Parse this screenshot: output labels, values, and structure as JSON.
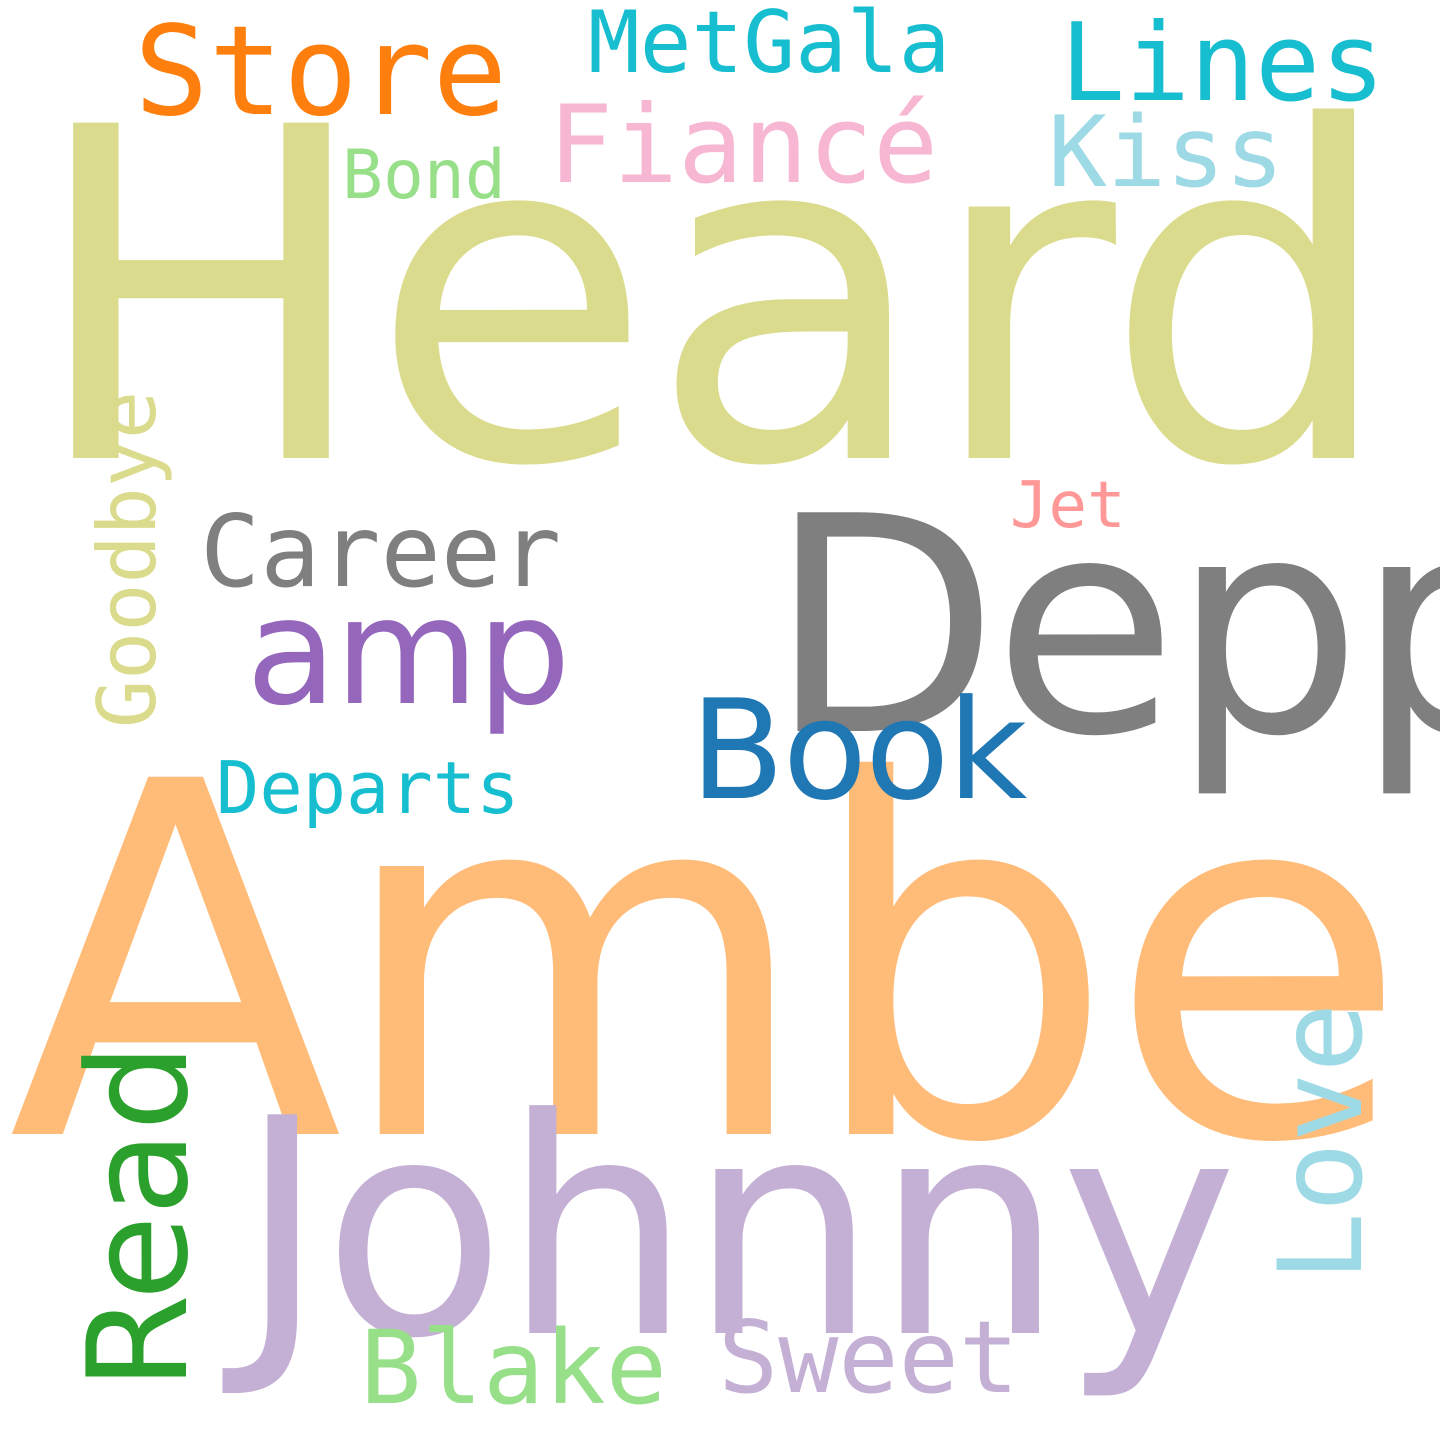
{
  "words": {
    "heard": {
      "text": "Heard",
      "color": "#dbdb8d"
    },
    "amber": {
      "text": "Amber",
      "color": "#ffbb78"
    },
    "johnny": {
      "text": "Johnny",
      "color": "#c5b0d5"
    },
    "depp": {
      "text": "Depp",
      "color": "#7f7f7f"
    },
    "store": {
      "text": "Store",
      "color": "#ff7f0e"
    },
    "metgala": {
      "text": "MetGala",
      "color": "#17becf"
    },
    "lines": {
      "text": "Lines",
      "color": "#17becf"
    },
    "fiance": {
      "text": "Fiancé",
      "color": "#f7b6d2"
    },
    "kiss": {
      "text": "Kiss",
      "color": "#9edae5"
    },
    "bond": {
      "text": "Bond",
      "color": "#98df8a"
    },
    "career": {
      "text": "Career",
      "color": "#7f7f7f"
    },
    "jet": {
      "text": "Jet",
      "color": "#ff9896"
    },
    "amp": {
      "text": "amp",
      "color": "#9467bd"
    },
    "book": {
      "text": "Book",
      "color": "#1f77b4"
    },
    "departs": {
      "text": "Departs",
      "color": "#17becf"
    },
    "goodbye": {
      "text": "Goodbye",
      "color": "#dbdb8d"
    },
    "read": {
      "text": "Read",
      "color": "#2ca02c"
    },
    "love": {
      "text": "Love",
      "color": "#9edae5"
    },
    "blake": {
      "text": "Blake",
      "color": "#98df8a"
    },
    "sweet": {
      "text": "Sweet",
      "color": "#c5b0d5"
    }
  }
}
